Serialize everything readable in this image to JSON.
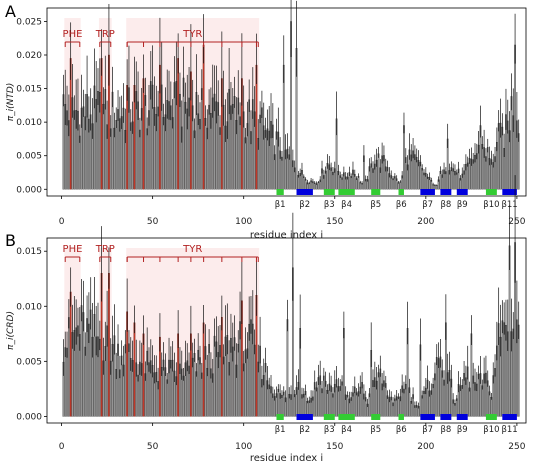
{
  "chart_data": [
    {
      "panel": "A",
      "type": "bar",
      "ylabel": "π_i(NTD)",
      "xlabel": "residue index i",
      "xlim": [
        -8,
        255
      ],
      "ylim": [
        -0.001,
        0.027
      ],
      "xticks": [
        0,
        50,
        100,
        150,
        200,
        250
      ],
      "yticks": [
        0.0,
        0.005,
        0.01,
        0.015,
        0.02,
        0.025
      ],
      "ytick_labels": [
        "0.000",
        "0.005",
        "0.010",
        "0.015",
        "0.020",
        "0.025"
      ],
      "profile": [
        [
          0,
          0.013
        ],
        [
          10,
          0.012
        ],
        [
          20,
          0.0125
        ],
        [
          30,
          0.012
        ],
        [
          40,
          0.0125
        ],
        [
          50,
          0.013
        ],
        [
          60,
          0.013
        ],
        [
          70,
          0.0135
        ],
        [
          80,
          0.013
        ],
        [
          90,
          0.0125
        ],
        [
          100,
          0.0115
        ],
        [
          108,
          0.011
        ],
        [
          112,
          0.009
        ],
        [
          118,
          0.0075
        ],
        [
          124,
          0.0055
        ],
        [
          130,
          0.003
        ],
        [
          135,
          0.0015
        ],
        [
          140,
          0.001
        ],
        [
          146,
          0.004
        ],
        [
          150,
          0.0035
        ],
        [
          155,
          0.002
        ],
        [
          160,
          0.003
        ],
        [
          166,
          0.0005
        ],
        [
          172,
          0.005
        ],
        [
          178,
          0.004
        ],
        [
          182,
          0.002
        ],
        [
          186,
          0.001
        ],
        [
          190,
          0.0055
        ],
        [
          196,
          0.004
        ],
        [
          202,
          0.0015
        ],
        [
          206,
          0.0005
        ],
        [
          210,
          0.004
        ],
        [
          216,
          0.003
        ],
        [
          220,
          0.002
        ],
        [
          226,
          0.005
        ],
        [
          232,
          0.007
        ],
        [
          236,
          0.004
        ],
        [
          240,
          0.008
        ],
        [
          244,
          0.009
        ],
        [
          248,
          0.014
        ],
        [
          251,
          0.012
        ]
      ],
      "peaks": [
        [
          122,
          0.0185
        ],
        [
          126,
          0.025
        ],
        [
          129,
          0.021
        ],
        [
          151,
          0.0105
        ],
        [
          166,
          0.005
        ],
        [
          188,
          0.0095
        ],
        [
          212,
          0.0075
        ],
        [
          230,
          0.0095
        ],
        [
          249,
          0.0215
        ]
      ],
      "tyr_bars": [
        [
          5,
          0.0195
        ],
        [
          22,
          0.0195
        ],
        [
          26,
          0.02
        ],
        [
          36,
          0.0155
        ],
        [
          40,
          0.0155
        ],
        [
          45,
          0.0165
        ],
        [
          54,
          0.0185
        ],
        [
          64,
          0.0195
        ],
        [
          71,
          0.0175
        ],
        [
          78,
          0.0215
        ],
        [
          88,
          0.0165
        ],
        [
          99,
          0.0165
        ],
        [
          107,
          0.0185
        ]
      ],
      "groups": [
        {
          "label": "PHE",
          "start": 2,
          "end": 10
        },
        {
          "label": "TRP",
          "start": 21,
          "end": 27
        },
        {
          "label": "TYR",
          "start": 36,
          "end": 108
        }
      ],
      "tyr_ticks": [
        36,
        45,
        54,
        64,
        71,
        78,
        88,
        99,
        107
      ],
      "strands": [
        {
          "label": "β1",
          "start": 118,
          "end": 122,
          "color": "#33cc33"
        },
        {
          "label": "β2",
          "start": 129,
          "end": 138,
          "color": "#0000dd"
        },
        {
          "label": "β3",
          "start": 144,
          "end": 150,
          "color": "#33cc33"
        },
        {
          "label": "β4",
          "start": 152,
          "end": 161,
          "color": "#33cc33"
        },
        {
          "label": "β5",
          "start": 170,
          "end": 175,
          "color": "#33cc33"
        },
        {
          "label": "β6",
          "start": 185,
          "end": 188,
          "color": "#33cc33"
        },
        {
          "label": "β7",
          "start": 197,
          "end": 205,
          "color": "#0000dd"
        },
        {
          "label": "β8",
          "start": 208,
          "end": 214,
          "color": "#0000dd"
        },
        {
          "label": "β9",
          "start": 217,
          "end": 223,
          "color": "#0000dd"
        },
        {
          "label": "β10",
          "start": 233,
          "end": 239,
          "color": "#33cc33"
        },
        {
          "label": "β11",
          "start": 242,
          "end": 250,
          "color": "#0000dd"
        }
      ]
    },
    {
      "panel": "B",
      "type": "bar",
      "ylabel": "π_i(CRD)",
      "xlabel": "residue index i",
      "xlim": [
        -8,
        255
      ],
      "ylim": [
        -0.0006,
        0.0162
      ],
      "xticks": [
        0,
        50,
        100,
        150,
        200,
        250
      ],
      "yticks": [
        0.0,
        0.005,
        0.01,
        0.015
      ],
      "ytick_labels": [
        "0.000",
        "0.005",
        "0.010",
        "0.015"
      ],
      "profile": [
        [
          0,
          0.007
        ],
        [
          5,
          0.0075
        ],
        [
          10,
          0.0085
        ],
        [
          15,
          0.008
        ],
        [
          20,
          0.0075
        ],
        [
          25,
          0.007
        ],
        [
          30,
          0.0065
        ],
        [
          35,
          0.006
        ],
        [
          40,
          0.0055
        ],
        [
          45,
          0.005
        ],
        [
          50,
          0.0045
        ],
        [
          55,
          0.0043
        ],
        [
          60,
          0.0043
        ],
        [
          65,
          0.0045
        ],
        [
          70,
          0.0045
        ],
        [
          75,
          0.005
        ],
        [
          80,
          0.0055
        ],
        [
          85,
          0.006
        ],
        [
          90,
          0.0065
        ],
        [
          95,
          0.007
        ],
        [
          100,
          0.0072
        ],
        [
          105,
          0.007
        ],
        [
          110,
          0.005
        ],
        [
          115,
          0.003
        ],
        [
          120,
          0.002
        ],
        [
          126,
          0.002
        ],
        [
          130,
          0.0035
        ],
        [
          136,
          0.0015
        ],
        [
          142,
          0.004
        ],
        [
          148,
          0.0025
        ],
        [
          152,
          0.0035
        ],
        [
          158,
          0.0015
        ],
        [
          164,
          0.003
        ],
        [
          168,
          0.0015
        ],
        [
          174,
          0.004
        ],
        [
          178,
          0.003
        ],
        [
          182,
          0.001
        ],
        [
          188,
          0.003
        ],
        [
          192,
          0.002
        ],
        [
          196,
          0.001
        ],
        [
          202,
          0.003
        ],
        [
          208,
          0.0055
        ],
        [
          212,
          0.004
        ],
        [
          216,
          0.0015
        ],
        [
          222,
          0.004
        ],
        [
          228,
          0.003
        ],
        [
          232,
          0.0035
        ],
        [
          236,
          0.0025
        ],
        [
          240,
          0.0075
        ],
        [
          244,
          0.009
        ],
        [
          248,
          0.0105
        ],
        [
          251,
          0.009
        ]
      ],
      "peaks": [
        [
          124,
          0.0088
        ],
        [
          127,
          0.0135
        ],
        [
          131,
          0.008
        ],
        [
          155,
          0.008
        ],
        [
          170,
          0.006
        ],
        [
          190,
          0.008
        ],
        [
          197,
          0.0065
        ],
        [
          211,
          0.0085
        ],
        [
          225,
          0.0075
        ],
        [
          246,
          0.0155
        ],
        [
          249,
          0.0158
        ]
      ],
      "tyr_bars": [
        [
          5,
          0.0113
        ],
        [
          22,
          0.013
        ],
        [
          26,
          0.013
        ],
        [
          36,
          0.0095
        ],
        [
          40,
          0.0085
        ],
        [
          45,
          0.0075
        ],
        [
          54,
          0.0072
        ],
        [
          64,
          0.0075
        ],
        [
          71,
          0.0075
        ],
        [
          78,
          0.0085
        ],
        [
          88,
          0.009
        ],
        [
          99,
          0.0105
        ],
        [
          107,
          0.011
        ]
      ],
      "groups": [
        {
          "label": "PHE",
          "start": 2,
          "end": 10
        },
        {
          "label": "TRP",
          "start": 21,
          "end": 27
        },
        {
          "label": "TYR",
          "start": 36,
          "end": 108
        }
      ],
      "tyr_ticks": [
        36,
        45,
        54,
        64,
        71,
        78,
        88,
        99,
        107
      ],
      "strands": [
        {
          "label": "β1",
          "start": 118,
          "end": 122,
          "color": "#33cc33"
        },
        {
          "label": "β2",
          "start": 129,
          "end": 138,
          "color": "#0000dd"
        },
        {
          "label": "β3",
          "start": 144,
          "end": 150,
          "color": "#33cc33"
        },
        {
          "label": "β4",
          "start": 152,
          "end": 161,
          "color": "#33cc33"
        },
        {
          "label": "β5",
          "start": 170,
          "end": 175,
          "color": "#33cc33"
        },
        {
          "label": "β6",
          "start": 185,
          "end": 188,
          "color": "#33cc33"
        },
        {
          "label": "β7",
          "start": 197,
          "end": 205,
          "color": "#0000dd"
        },
        {
          "label": "β8",
          "start": 208,
          "end": 214,
          "color": "#0000dd"
        },
        {
          "label": "β9",
          "start": 217,
          "end": 223,
          "color": "#0000dd"
        },
        {
          "label": "β10",
          "start": 233,
          "end": 239,
          "color": "#33cc33"
        },
        {
          "label": "β11",
          "start": 242,
          "end": 250,
          "color": "#0000dd"
        }
      ]
    }
  ]
}
